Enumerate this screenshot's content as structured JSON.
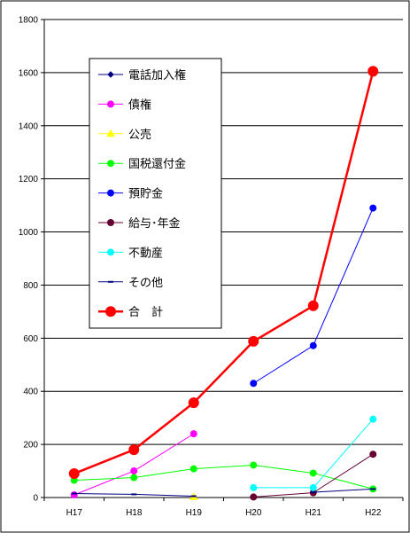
{
  "chart_data": {
    "type": "line",
    "categories": [
      "H17",
      "H18",
      "H19",
      "H20",
      "H21",
      "H22"
    ],
    "ylim": [
      0,
      1800
    ],
    "yticks": [
      "0",
      "200",
      "400",
      "600",
      "800",
      "1000",
      "1200",
      "1400",
      "1600",
      "1800"
    ],
    "grid": "horizontal",
    "legend_position": "upper-left",
    "series": [
      {
        "name": "電話加入権",
        "color": "#000080",
        "marker": "diamond",
        "values": [
          null,
          null,
          null,
          null,
          null,
          null
        ]
      },
      {
        "name": "債権",
        "color": "#FF00FF",
        "marker": "circle",
        "values": [
          10,
          100,
          240,
          null,
          null,
          null
        ]
      },
      {
        "name": "公売",
        "color": "#FFFF00",
        "marker": "triangle",
        "values": [
          null,
          null,
          2,
          null,
          null,
          null
        ]
      },
      {
        "name": "国税還付金",
        "color": "#00FF00",
        "marker": "circle",
        "values": [
          65,
          75,
          108,
          122,
          92,
          32
        ]
      },
      {
        "name": "預貯金",
        "color": "#0000FF",
        "marker": "circle",
        "values": [
          null,
          null,
          null,
          430,
          572,
          1090
        ]
      },
      {
        "name": "給与･年金",
        "color": "#660033",
        "marker": "circle",
        "values": [
          null,
          null,
          null,
          2,
          18,
          163
        ]
      },
      {
        "name": "不動産",
        "color": "#00FFFF",
        "marker": "circle",
        "values": [
          null,
          null,
          null,
          37,
          37,
          295
        ]
      },
      {
        "name": "その他",
        "color": "#000080",
        "marker": "dash",
        "values": [
          15,
          12,
          5,
          null,
          20,
          32
        ]
      },
      {
        "name": "合　計",
        "color": "#FF0000",
        "marker": "circle-large",
        "values": [
          90,
          180,
          357,
          588,
          722,
          1605
        ]
      }
    ]
  }
}
